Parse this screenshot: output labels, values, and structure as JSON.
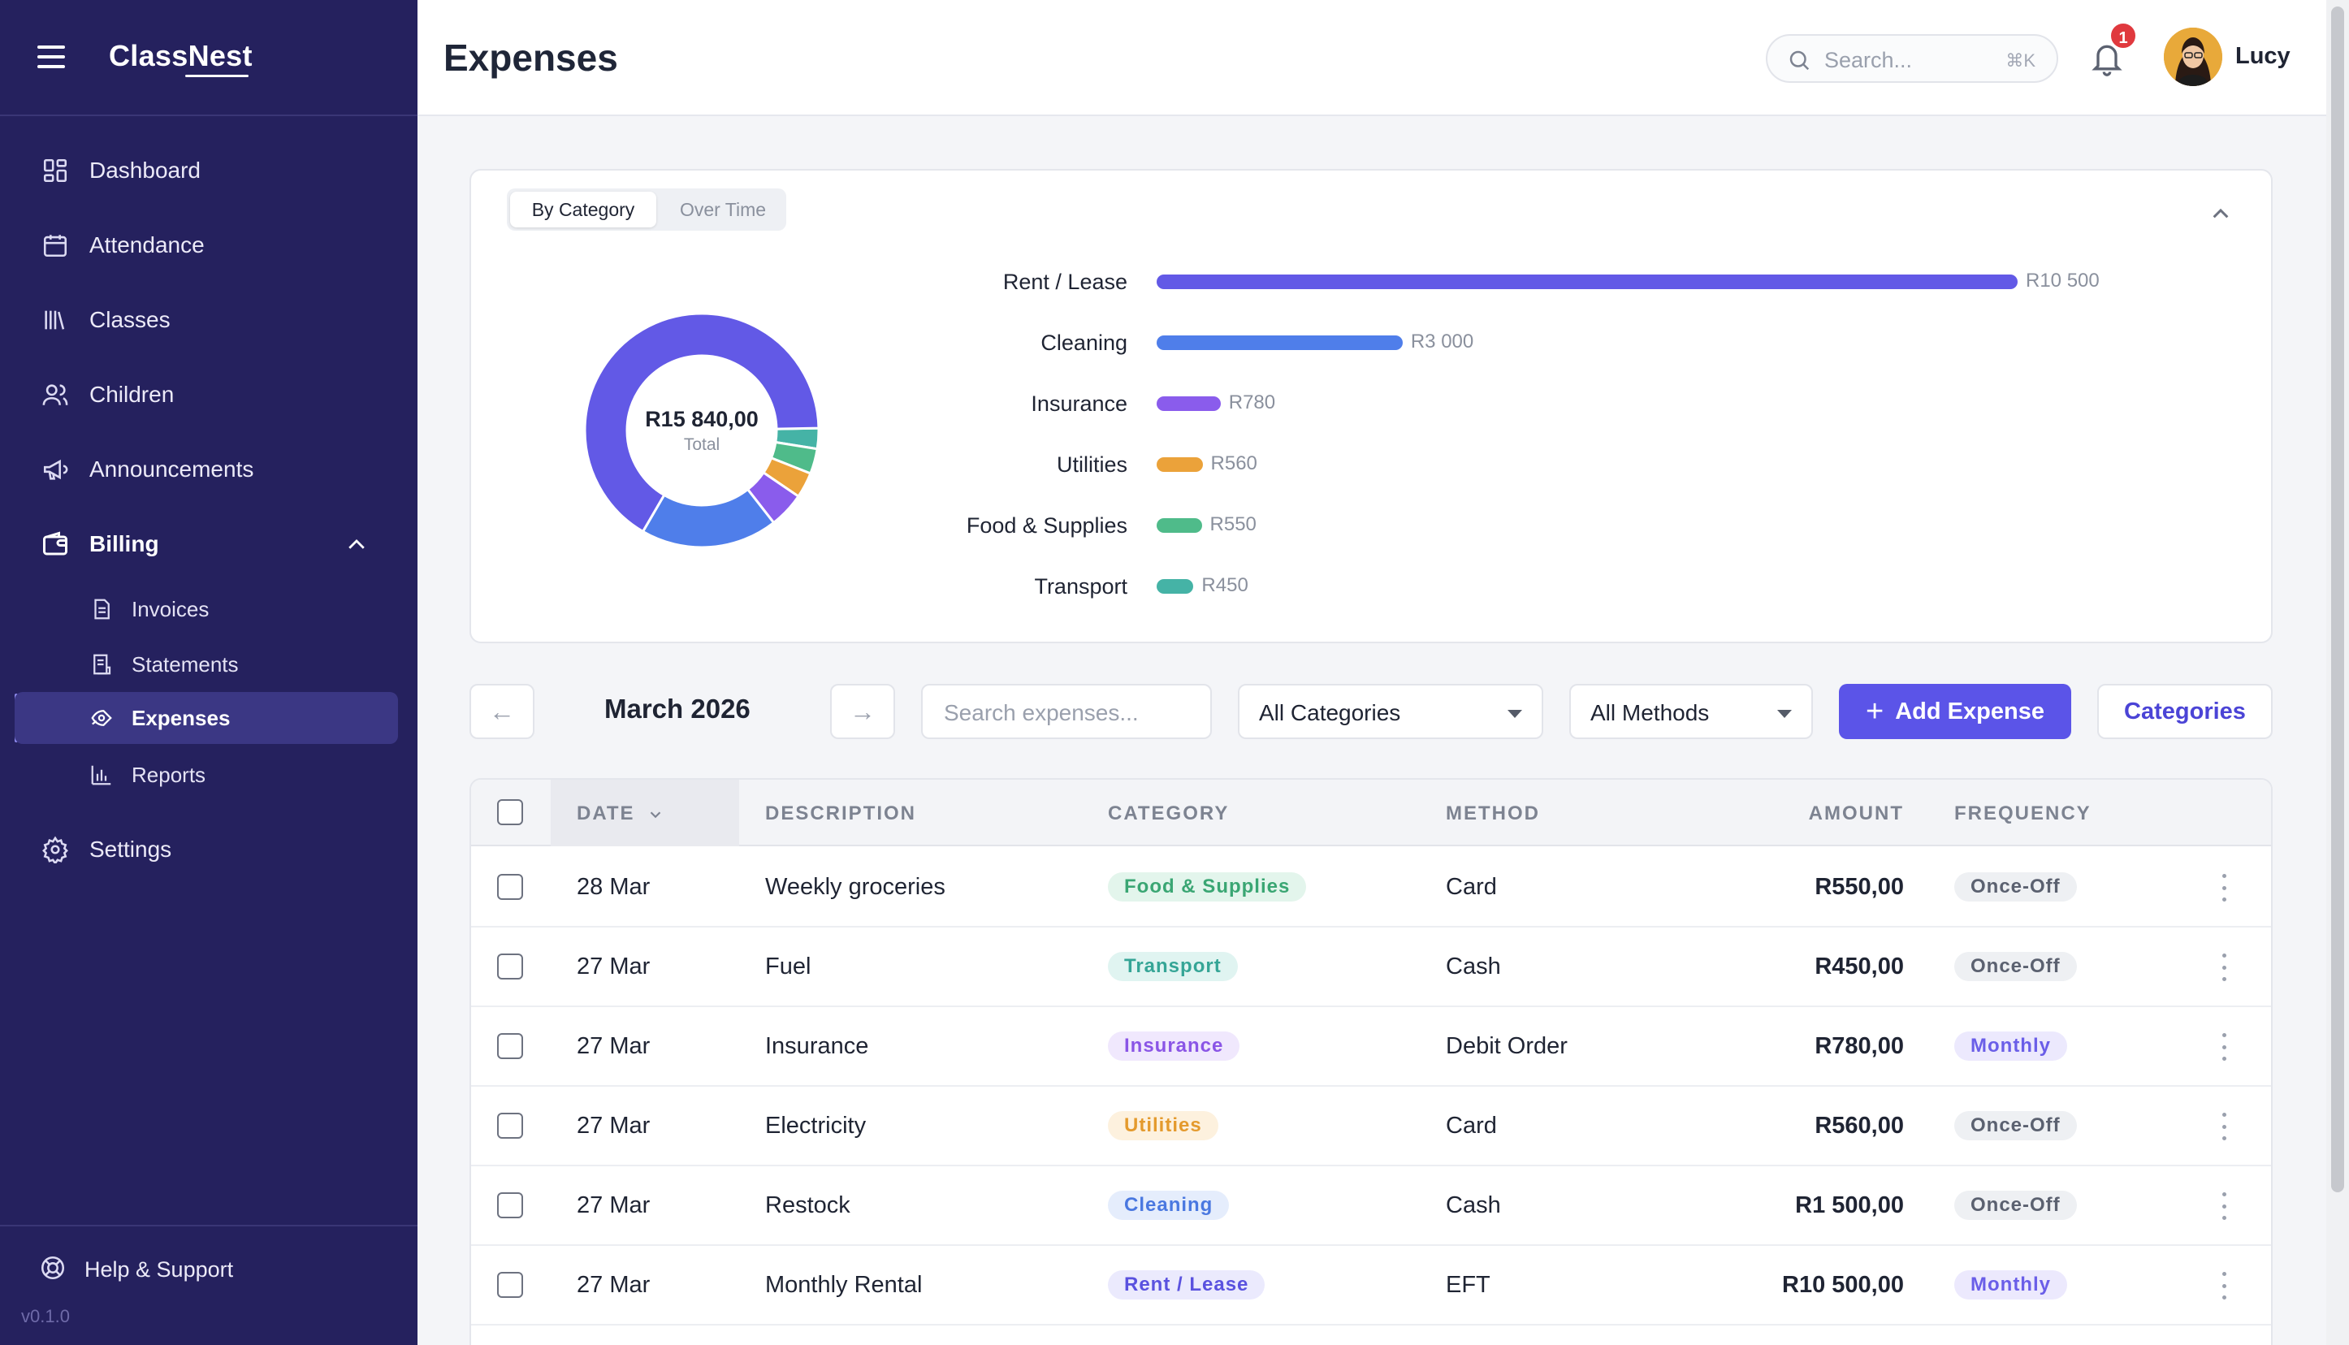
{
  "app": {
    "brand": "ClassNest",
    "version": "v0.1.0"
  },
  "sidebar": {
    "items": [
      {
        "label": "Dashboard"
      },
      {
        "label": "Attendance"
      },
      {
        "label": "Classes"
      },
      {
        "label": "Children"
      },
      {
        "label": "Announcements"
      },
      {
        "label": "Billing"
      }
    ],
    "billing_sub": [
      {
        "label": "Invoices"
      },
      {
        "label": "Statements"
      },
      {
        "label": "Expenses"
      },
      {
        "label": "Reports"
      }
    ],
    "settings": "Settings",
    "help": "Help & Support"
  },
  "header": {
    "title": "Expenses",
    "search_placeholder": "Search...",
    "search_shortcut": "⌘K",
    "notification_count": "1",
    "user_name": "Lucy"
  },
  "summary": {
    "tabs": [
      "By Category",
      "Over Time"
    ],
    "active_tab": "By Category",
    "total": "R15 840,00",
    "total_caption": "Total"
  },
  "chart_data": {
    "type": "bar",
    "orientation": "horizontal",
    "categories": [
      "Rent / Lease",
      "Cleaning",
      "Insurance",
      "Utilities",
      "Food & Supplies",
      "Transport"
    ],
    "values": [
      10500,
      3000,
      780,
      560,
      550,
      450
    ],
    "value_labels": [
      "R10 500",
      "R3 000",
      "R780",
      "R560",
      "R550",
      "R450"
    ],
    "colors": [
      "#6259e6",
      "#4f7eea",
      "#8a5cec",
      "#eba23a",
      "#4fbb8a",
      "#45b3a6"
    ],
    "donut": {
      "type": "pie",
      "hole": true,
      "categories": [
        "Rent / Lease",
        "Cleaning",
        "Insurance",
        "Utilities",
        "Food & Supplies",
        "Transport"
      ],
      "values": [
        10500,
        3000,
        780,
        560,
        550,
        450
      ]
    }
  },
  "toolbar": {
    "prev": "←",
    "next": "→",
    "month": "March 2026",
    "search_placeholder": "Search expenses...",
    "category_filter": "All Categories",
    "method_filter": "All Methods",
    "add_label": "Add Expense",
    "categories_label": "Categories"
  },
  "table": {
    "columns": [
      "DATE",
      "DESCRIPTION",
      "CATEGORY",
      "METHOD",
      "AMOUNT",
      "FREQUENCY"
    ],
    "rows": [
      {
        "date": "28 Mar",
        "description": "Weekly groceries",
        "category": "Food & Supplies",
        "method": "Card",
        "amount": "R550,00",
        "frequency": "Once-Off"
      },
      {
        "date": "27 Mar",
        "description": "Fuel",
        "category": "Transport",
        "method": "Cash",
        "amount": "R450,00",
        "frequency": "Once-Off"
      },
      {
        "date": "27 Mar",
        "description": "Insurance",
        "category": "Insurance",
        "method": "Debit Order",
        "amount": "R780,00",
        "frequency": "Monthly"
      },
      {
        "date": "27 Mar",
        "description": "Electricity",
        "category": "Utilities",
        "method": "Card",
        "amount": "R560,00",
        "frequency": "Once-Off"
      },
      {
        "date": "27 Mar",
        "description": "Restock",
        "category": "Cleaning",
        "method": "Cash",
        "amount": "R1 500,00",
        "frequency": "Once-Off"
      },
      {
        "date": "27 Mar",
        "description": "Monthly Rental",
        "category": "Rent / Lease",
        "method": "EFT",
        "amount": "R10 500,00",
        "frequency": "Monthly"
      }
    ],
    "category_styles": {
      "Food & Supplies": {
        "bg": "#e3f5ec",
        "fg": "#3aa673"
      },
      "Transport": {
        "bg": "#e0f4f1",
        "fg": "#35a596"
      },
      "Insurance": {
        "bg": "#f0e8fd",
        "fg": "#8a55e6"
      },
      "Utilities": {
        "bg": "#fdf1de",
        "fg": "#e49a2d"
      },
      "Cleaning": {
        "bg": "#e5edfc",
        "fg": "#4a78e0"
      },
      "Rent / Lease": {
        "bg": "#ebeafd",
        "fg": "#5a52df"
      }
    }
  }
}
